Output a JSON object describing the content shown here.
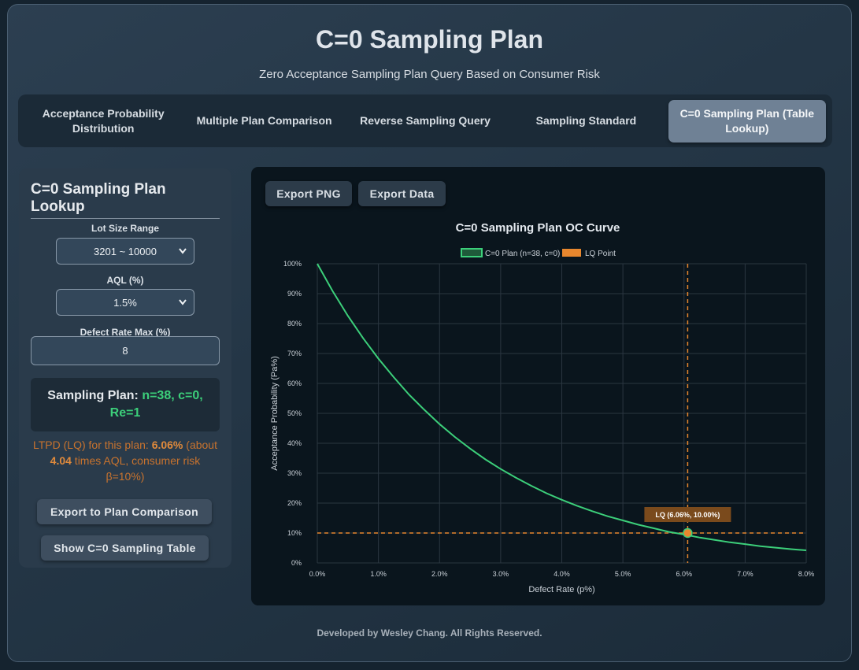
{
  "header": {
    "title": "C=0 Sampling Plan",
    "subtitle": "Zero Acceptance Sampling Plan Query Based on Consumer Risk"
  },
  "tabs": [
    {
      "label": "Acceptance Probability Distribution",
      "active": false
    },
    {
      "label": "Multiple Plan Comparison",
      "active": false
    },
    {
      "label": "Reverse Sampling Query",
      "active": false
    },
    {
      "label": "Sampling Standard",
      "active": false
    },
    {
      "label": "C=0 Sampling Plan (Table Lookup)",
      "active": true
    }
  ],
  "sidebar": {
    "title": "C=0 Sampling Plan Lookup",
    "lot_size": {
      "label": "Lot Size Range",
      "value": "3201 ~ 10000"
    },
    "aql": {
      "label": "AQL (%)",
      "value": "1.5%"
    },
    "defect_max": {
      "label": "Defect Rate Max (%)",
      "value": "8"
    },
    "plan": {
      "prefix": "Sampling Plan:",
      "value": "n=38, c=0, Re=1"
    },
    "ltpd": {
      "part1": "LTPD (LQ) for this plan: ",
      "lq": "6.06%",
      "part2": " (about ",
      "times": "4.04",
      "part3": " times AQL, consumer risk β=10%)"
    },
    "export_button": "Export to Plan Comparison",
    "show_table_button": "Show C=0 Sampling Table"
  },
  "chart_panel": {
    "export_png": "Export PNG",
    "export_data": "Export Data"
  },
  "chart_data": {
    "type": "line",
    "title": "C=0 Sampling Plan OC Curve",
    "xlabel": "Defect Rate (p%)",
    "ylabel": "Acceptance Probability (Pa%)",
    "xlim": [
      0,
      8
    ],
    "ylim": [
      0,
      100
    ],
    "x_ticks": [
      "0.0%",
      "1.0%",
      "2.0%",
      "3.0%",
      "4.0%",
      "5.0%",
      "6.0%",
      "7.0%",
      "8.0%"
    ],
    "y_ticks": [
      "0%",
      "10%",
      "20%",
      "30%",
      "40%",
      "50%",
      "60%",
      "70%",
      "80%",
      "90%",
      "100%"
    ],
    "grid": true,
    "legend_position": "top",
    "series": [
      {
        "name": "C=0 Plan (n=38, c=0)",
        "color": "#3ccf7a",
        "x": [
          0,
          0.25,
          0.5,
          0.75,
          1.0,
          1.25,
          1.5,
          1.75,
          2.0,
          2.25,
          2.5,
          2.75,
          3.0,
          3.25,
          3.5,
          3.75,
          4.0,
          4.25,
          4.5,
          4.75,
          5.0,
          5.25,
          5.5,
          5.75,
          6.0,
          6.25,
          6.5,
          6.75,
          7.0,
          7.25,
          7.5,
          7.75,
          8.0
        ],
        "y": [
          100,
          90.9,
          82.6,
          75.1,
          68.3,
          62.1,
          56.3,
          51.2,
          46.4,
          42.1,
          38.2,
          34.6,
          31.4,
          28.5,
          25.8,
          23.3,
          21.1,
          19.1,
          17.3,
          15.6,
          14.2,
          12.8,
          11.6,
          10.4,
          9.5,
          8.5,
          7.7,
          6.9,
          6.3,
          5.6,
          5.1,
          4.6,
          4.2
        ]
      },
      {
        "name": "LQ Point",
        "color": "#e8872e",
        "x": [
          6.06
        ],
        "y": [
          10.0
        ]
      }
    ],
    "reference_lines": {
      "x": 6.06,
      "y": 10,
      "color": "#e8872e"
    },
    "annotation": "LQ (6.06%, 10.00%)",
    "annotation_color": "#7a4a1c"
  },
  "footer": "Developed by Wesley Chang. All Rights Reserved."
}
